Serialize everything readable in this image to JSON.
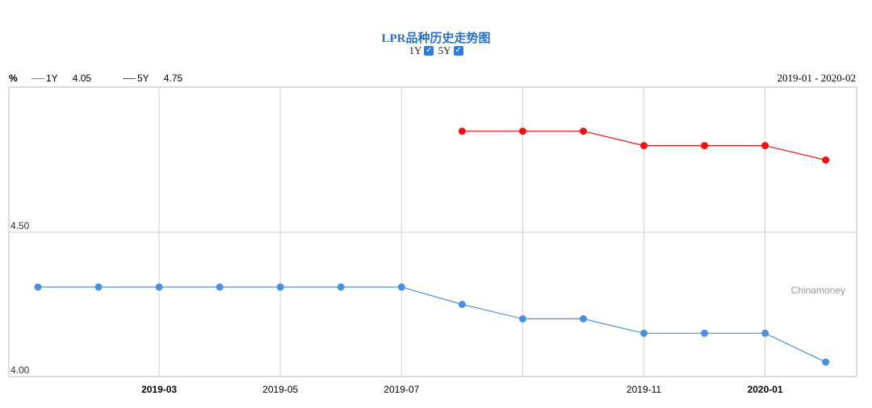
{
  "header": {
    "title": "LPR品种历史走势图",
    "toggle_1y_label": "1Y",
    "toggle_5y_label": "5Y",
    "unit_label": "%",
    "legend_1y_name": "1Y",
    "legend_1y_value": "4.05",
    "legend_5y_name": "5Y",
    "legend_5y_value": "4.75",
    "date_range": "2019-01 - 2020-02",
    "watermark": "Chinamoney"
  },
  "colors": {
    "series_1y": "#4a90e2",
    "series_5y": "#ee1111",
    "grid": "#d0d0d0",
    "frame": "#bbbbbb"
  },
  "chart_data": {
    "type": "line",
    "x": [
      "2019-01",
      "2019-02",
      "2019-03",
      "2019-04",
      "2019-05",
      "2019-06",
      "2019-07",
      "2019-08",
      "2019-09",
      "2019-10",
      "2019-11",
      "2019-12",
      "2020-01",
      "2020-02"
    ],
    "series": [
      {
        "name": "1Y",
        "values": [
          4.31,
          4.31,
          4.31,
          4.31,
          4.31,
          4.31,
          4.31,
          4.25,
          4.2,
          4.2,
          4.15,
          4.15,
          4.15,
          4.05
        ]
      },
      {
        "name": "5Y",
        "values": [
          null,
          null,
          null,
          null,
          null,
          null,
          null,
          4.85,
          4.85,
          4.85,
          4.8,
          4.8,
          4.8,
          4.75
        ]
      }
    ],
    "ylim": [
      4.0,
      5.0
    ],
    "y_ticks": [
      "4.00",
      "4.50"
    ],
    "x_ticks": [
      {
        "label": "2019-03",
        "index": 2,
        "bold": true
      },
      {
        "label": "2019-05",
        "index": 4,
        "bold": false
      },
      {
        "label": "2019-07",
        "index": 6,
        "bold": false
      },
      {
        "label": "2019-11",
        "index": 10,
        "bold": false
      },
      {
        "label": "2020-01",
        "index": 12,
        "bold": true
      }
    ],
    "grid": true,
    "legend_position": "top-left"
  }
}
